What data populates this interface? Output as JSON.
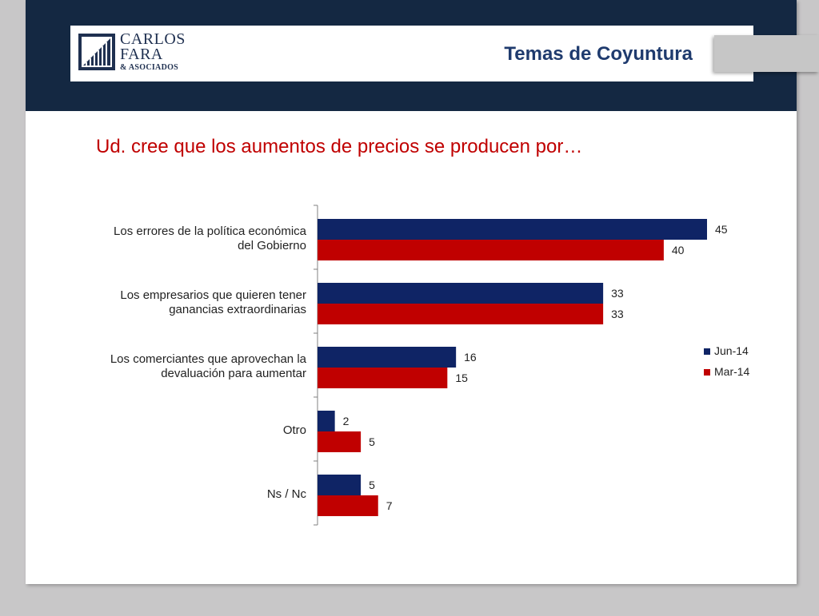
{
  "header": {
    "logo_line1": "CARLOS",
    "logo_line2": "FARA",
    "logo_line3": "& ASOCIADOS",
    "title": "Temas de Coyuntura"
  },
  "question": "Ud. cree que los aumentos de precios se producen por…",
  "colors": {
    "header_band": "#142842",
    "series_jun": "#0f2465",
    "series_mar": "#c00000",
    "question": "#c00000"
  },
  "chart_data": {
    "type": "bar",
    "orientation": "horizontal",
    "categories": [
      [
        "Los errores de la política económica",
        "del Gobierno"
      ],
      [
        "Los empresarios que quieren tener",
        "ganancias extraordinarias"
      ],
      [
        "Los comerciantes que aprovechan la",
        "devaluación para aumentar"
      ],
      [
        "Otro"
      ],
      [
        "Ns / Nc"
      ]
    ],
    "series": [
      {
        "name": "Jun-14",
        "values": [
          45,
          33,
          16,
          2,
          5
        ],
        "color": "#0f2465"
      },
      {
        "name": "Mar-14",
        "values": [
          40,
          33,
          15,
          5,
          7
        ],
        "color": "#c00000"
      }
    ],
    "xlim": [
      0,
      50
    ],
    "grid": false,
    "legend_position": "right"
  }
}
